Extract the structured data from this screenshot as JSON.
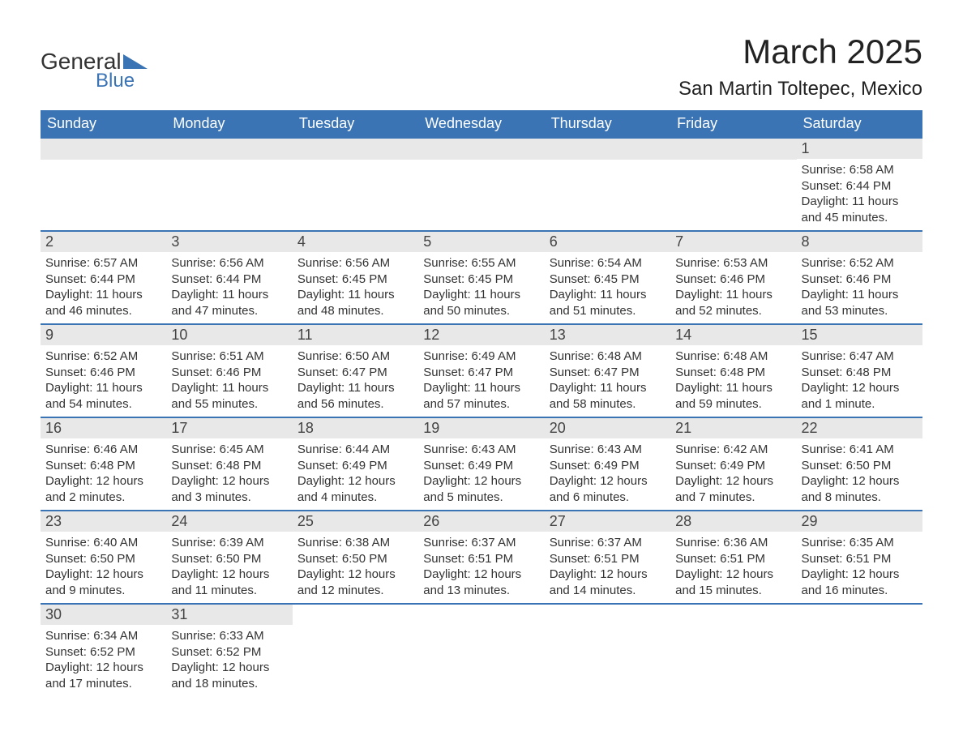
{
  "logo": {
    "text1": "General",
    "text2": "Blue",
    "shape_color": "#3a74b4"
  },
  "title": "March 2025",
  "location": "San Martin Toltepec, Mexico",
  "colors": {
    "header_bg": "#3a74b4",
    "header_text": "#ffffff",
    "daynum_bg": "#e8e8e8",
    "row_border": "#3a74b4",
    "body_text": "#333333"
  },
  "typography": {
    "title_fontsize": 42,
    "location_fontsize": 24,
    "dow_fontsize": 18,
    "daynum_fontsize": 18,
    "detail_fontsize": 15
  },
  "days_of_week": [
    "Sunday",
    "Monday",
    "Tuesday",
    "Wednesday",
    "Thursday",
    "Friday",
    "Saturday"
  ],
  "weeks": [
    [
      null,
      null,
      null,
      null,
      null,
      null,
      {
        "n": "1",
        "sr": "Sunrise: 6:58 AM",
        "ss": "Sunset: 6:44 PM",
        "dl": "Daylight: 11 hours and 45 minutes."
      }
    ],
    [
      {
        "n": "2",
        "sr": "Sunrise: 6:57 AM",
        "ss": "Sunset: 6:44 PM",
        "dl": "Daylight: 11 hours and 46 minutes."
      },
      {
        "n": "3",
        "sr": "Sunrise: 6:56 AM",
        "ss": "Sunset: 6:44 PM",
        "dl": "Daylight: 11 hours and 47 minutes."
      },
      {
        "n": "4",
        "sr": "Sunrise: 6:56 AM",
        "ss": "Sunset: 6:45 PM",
        "dl": "Daylight: 11 hours and 48 minutes."
      },
      {
        "n": "5",
        "sr": "Sunrise: 6:55 AM",
        "ss": "Sunset: 6:45 PM",
        "dl": "Daylight: 11 hours and 50 minutes."
      },
      {
        "n": "6",
        "sr": "Sunrise: 6:54 AM",
        "ss": "Sunset: 6:45 PM",
        "dl": "Daylight: 11 hours and 51 minutes."
      },
      {
        "n": "7",
        "sr": "Sunrise: 6:53 AM",
        "ss": "Sunset: 6:46 PM",
        "dl": "Daylight: 11 hours and 52 minutes."
      },
      {
        "n": "8",
        "sr": "Sunrise: 6:52 AM",
        "ss": "Sunset: 6:46 PM",
        "dl": "Daylight: 11 hours and 53 minutes."
      }
    ],
    [
      {
        "n": "9",
        "sr": "Sunrise: 6:52 AM",
        "ss": "Sunset: 6:46 PM",
        "dl": "Daylight: 11 hours and 54 minutes."
      },
      {
        "n": "10",
        "sr": "Sunrise: 6:51 AM",
        "ss": "Sunset: 6:46 PM",
        "dl": "Daylight: 11 hours and 55 minutes."
      },
      {
        "n": "11",
        "sr": "Sunrise: 6:50 AM",
        "ss": "Sunset: 6:47 PM",
        "dl": "Daylight: 11 hours and 56 minutes."
      },
      {
        "n": "12",
        "sr": "Sunrise: 6:49 AM",
        "ss": "Sunset: 6:47 PM",
        "dl": "Daylight: 11 hours and 57 minutes."
      },
      {
        "n": "13",
        "sr": "Sunrise: 6:48 AM",
        "ss": "Sunset: 6:47 PM",
        "dl": "Daylight: 11 hours and 58 minutes."
      },
      {
        "n": "14",
        "sr": "Sunrise: 6:48 AM",
        "ss": "Sunset: 6:48 PM",
        "dl": "Daylight: 11 hours and 59 minutes."
      },
      {
        "n": "15",
        "sr": "Sunrise: 6:47 AM",
        "ss": "Sunset: 6:48 PM",
        "dl": "Daylight: 12 hours and 1 minute."
      }
    ],
    [
      {
        "n": "16",
        "sr": "Sunrise: 6:46 AM",
        "ss": "Sunset: 6:48 PM",
        "dl": "Daylight: 12 hours and 2 minutes."
      },
      {
        "n": "17",
        "sr": "Sunrise: 6:45 AM",
        "ss": "Sunset: 6:48 PM",
        "dl": "Daylight: 12 hours and 3 minutes."
      },
      {
        "n": "18",
        "sr": "Sunrise: 6:44 AM",
        "ss": "Sunset: 6:49 PM",
        "dl": "Daylight: 12 hours and 4 minutes."
      },
      {
        "n": "19",
        "sr": "Sunrise: 6:43 AM",
        "ss": "Sunset: 6:49 PM",
        "dl": "Daylight: 12 hours and 5 minutes."
      },
      {
        "n": "20",
        "sr": "Sunrise: 6:43 AM",
        "ss": "Sunset: 6:49 PM",
        "dl": "Daylight: 12 hours and 6 minutes."
      },
      {
        "n": "21",
        "sr": "Sunrise: 6:42 AM",
        "ss": "Sunset: 6:49 PM",
        "dl": "Daylight: 12 hours and 7 minutes."
      },
      {
        "n": "22",
        "sr": "Sunrise: 6:41 AM",
        "ss": "Sunset: 6:50 PM",
        "dl": "Daylight: 12 hours and 8 minutes."
      }
    ],
    [
      {
        "n": "23",
        "sr": "Sunrise: 6:40 AM",
        "ss": "Sunset: 6:50 PM",
        "dl": "Daylight: 12 hours and 9 minutes."
      },
      {
        "n": "24",
        "sr": "Sunrise: 6:39 AM",
        "ss": "Sunset: 6:50 PM",
        "dl": "Daylight: 12 hours and 11 minutes."
      },
      {
        "n": "25",
        "sr": "Sunrise: 6:38 AM",
        "ss": "Sunset: 6:50 PM",
        "dl": "Daylight: 12 hours and 12 minutes."
      },
      {
        "n": "26",
        "sr": "Sunrise: 6:37 AM",
        "ss": "Sunset: 6:51 PM",
        "dl": "Daylight: 12 hours and 13 minutes."
      },
      {
        "n": "27",
        "sr": "Sunrise: 6:37 AM",
        "ss": "Sunset: 6:51 PM",
        "dl": "Daylight: 12 hours and 14 minutes."
      },
      {
        "n": "28",
        "sr": "Sunrise: 6:36 AM",
        "ss": "Sunset: 6:51 PM",
        "dl": "Daylight: 12 hours and 15 minutes."
      },
      {
        "n": "29",
        "sr": "Sunrise: 6:35 AM",
        "ss": "Sunset: 6:51 PM",
        "dl": "Daylight: 12 hours and 16 minutes."
      }
    ],
    [
      {
        "n": "30",
        "sr": "Sunrise: 6:34 AM",
        "ss": "Sunset: 6:52 PM",
        "dl": "Daylight: 12 hours and 17 minutes."
      },
      {
        "n": "31",
        "sr": "Sunrise: 6:33 AM",
        "ss": "Sunset: 6:52 PM",
        "dl": "Daylight: 12 hours and 18 minutes."
      },
      null,
      null,
      null,
      null,
      null
    ]
  ]
}
